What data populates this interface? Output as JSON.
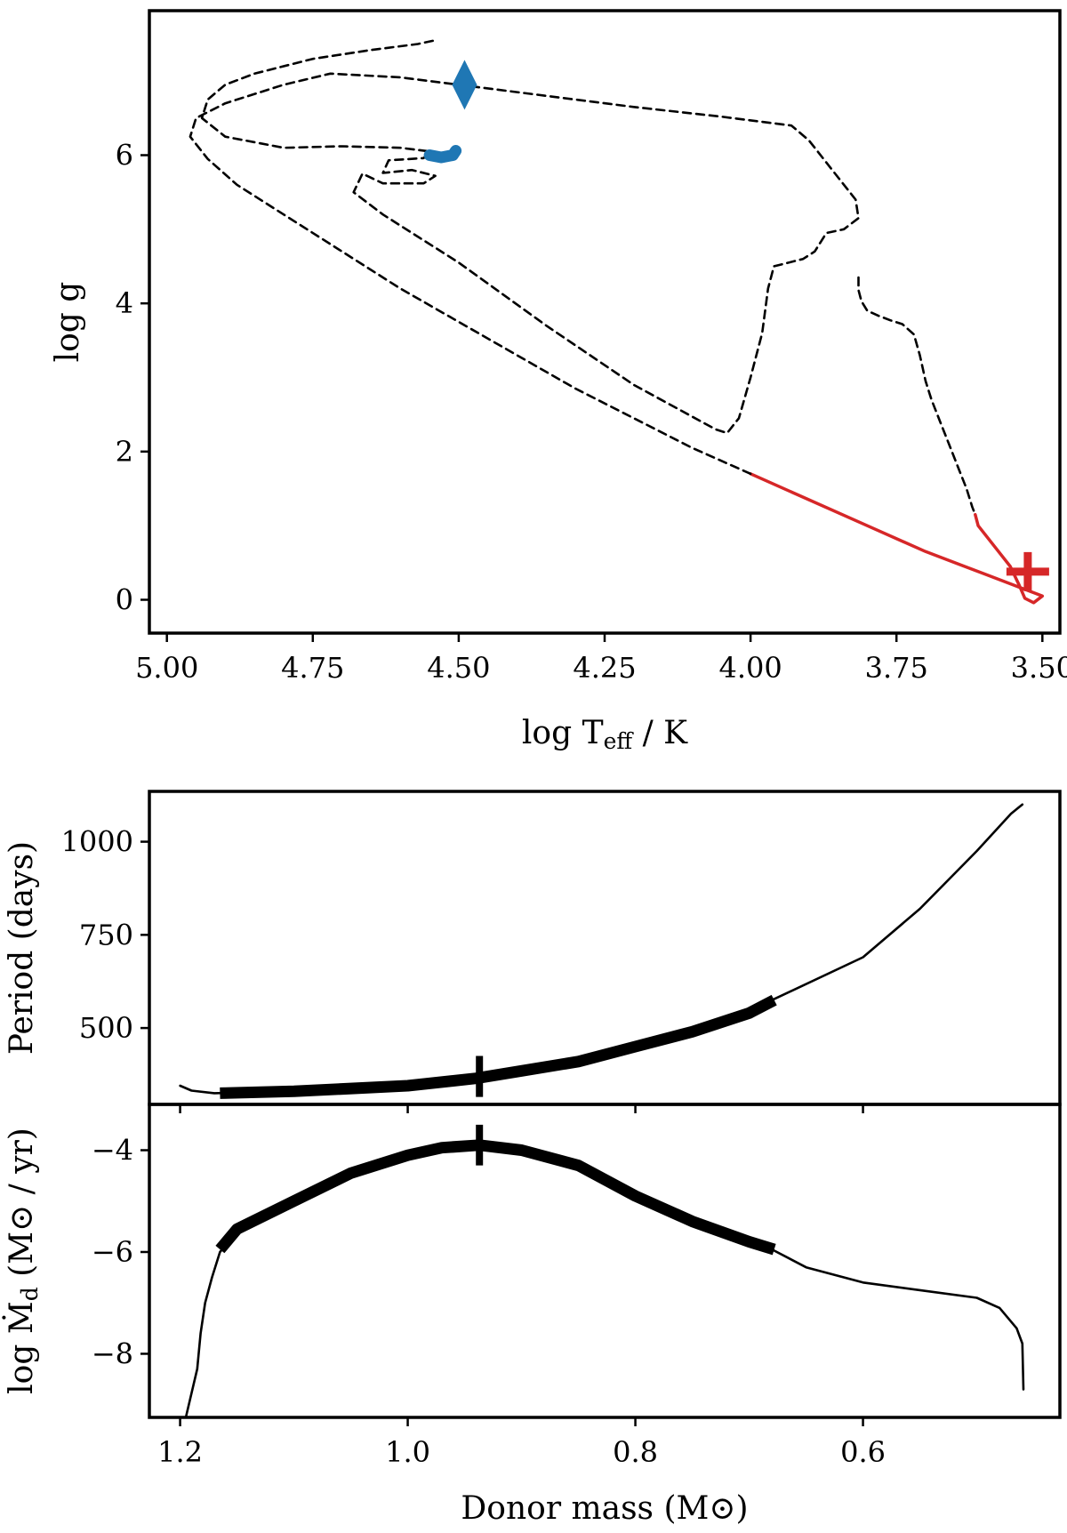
{
  "chart_data": [
    {
      "type": "line",
      "name": "hr-diagram",
      "xlabel": "log T",
      "xlabel_sub": "eff",
      "xlabel_unit": " / K",
      "ylabel": "log g",
      "xlim": [
        5.03,
        3.47
      ],
      "ylim": [
        -0.45,
        7.95
      ],
      "xticks": [
        5.0,
        4.75,
        4.5,
        4.25,
        4.0,
        3.75,
        3.5
      ],
      "xtick_labels": [
        "5.00",
        "4.75",
        "4.50",
        "4.25",
        "4.00",
        "3.75",
        "3.50"
      ],
      "yticks": [
        0,
        2,
        4,
        6
      ],
      "ytick_labels": [
        "0",
        "2",
        "4",
        "6"
      ],
      "colors": {
        "dashed": "#000000",
        "red": "#d62728",
        "blue": "#1f77b4"
      },
      "series": [
        {
          "name": "pre-transfer track",
          "style": "dashed",
          "points": [
            [
              3.815,
              4.35
            ],
            [
              3.815,
              4.18
            ],
            [
              3.81,
              4.03
            ],
            [
              3.8,
              3.9
            ],
            [
              3.78,
              3.83
            ],
            [
              3.76,
              3.77
            ],
            [
              3.74,
              3.72
            ],
            [
              3.72,
              3.58
            ],
            [
              3.71,
              3.3
            ],
            [
              3.7,
              2.95
            ],
            [
              3.69,
              2.7
            ],
            [
              3.675,
              2.4
            ],
            [
              3.66,
              2.1
            ],
            [
              3.645,
              1.8
            ],
            [
              3.63,
              1.5
            ],
            [
              3.62,
              1.25
            ],
            [
              3.615,
              1.15
            ]
          ]
        },
        {
          "name": "mass transfer phase",
          "style": "red",
          "points": [
            [
              3.615,
              1.15
            ],
            [
              3.61,
              1.0
            ],
            [
              3.58,
              0.7
            ],
            [
              3.555,
              0.45
            ],
            [
              3.54,
              0.2
            ],
            [
              3.53,
              0.02
            ],
            [
              3.515,
              -0.04
            ],
            [
              3.5,
              0.05
            ],
            [
              3.6,
              0.35
            ],
            [
              3.7,
              0.65
            ],
            [
              3.8,
              1.0
            ],
            [
              3.9,
              1.35
            ],
            [
              4.0,
              1.7
            ]
          ]
        },
        {
          "name": "post-transfer track",
          "style": "dashed",
          "points": [
            [
              4.0,
              1.7
            ],
            [
              4.1,
              2.05
            ],
            [
              4.2,
              2.45
            ],
            [
              4.3,
              2.85
            ],
            [
              4.4,
              3.3
            ],
            [
              4.5,
              3.75
            ],
            [
              4.6,
              4.2
            ],
            [
              4.7,
              4.7
            ],
            [
              4.8,
              5.2
            ],
            [
              4.88,
              5.6
            ],
            [
              4.93,
              5.95
            ],
            [
              4.96,
              6.25
            ],
            [
              4.95,
              6.5
            ],
            [
              4.9,
              6.7
            ],
            [
              4.8,
              6.95
            ],
            [
              4.72,
              7.1
            ],
            [
              4.6,
              7.05
            ],
            [
              4.5,
              6.95
            ],
            [
              4.35,
              6.8
            ],
            [
              4.2,
              6.65
            ],
            [
              4.05,
              6.52
            ],
            [
              3.93,
              6.4
            ],
            [
              3.9,
              6.2
            ],
            [
              3.86,
              5.8
            ],
            [
              3.82,
              5.4
            ],
            [
              3.815,
              5.15
            ],
            [
              3.84,
              5.0
            ],
            [
              3.87,
              4.95
            ],
            [
              3.89,
              4.7
            ],
            [
              3.91,
              4.6
            ],
            [
              3.96,
              4.5
            ],
            [
              3.97,
              4.2
            ],
            [
              3.98,
              3.6
            ],
            [
              4.0,
              3.0
            ],
            [
              4.02,
              2.45
            ],
            [
              4.04,
              2.25
            ],
            [
              4.06,
              2.3
            ],
            [
              4.2,
              2.9
            ],
            [
              4.35,
              3.7
            ],
            [
              4.5,
              4.55
            ],
            [
              4.63,
              5.2
            ],
            [
              4.68,
              5.5
            ],
            [
              4.665,
              5.75
            ],
            [
              4.63,
              5.62
            ],
            [
              4.56,
              5.62
            ],
            [
              4.54,
              5.72
            ],
            [
              4.58,
              5.8
            ],
            [
              4.63,
              5.76
            ],
            [
              4.62,
              5.93
            ],
            [
              4.56,
              5.96
            ],
            [
              4.55,
              6.05
            ],
            [
              4.6,
              6.1
            ],
            [
              4.7,
              6.12
            ],
            [
              4.8,
              6.1
            ],
            [
              4.9,
              6.25
            ],
            [
              4.94,
              6.5
            ],
            [
              4.93,
              6.75
            ],
            [
              4.9,
              6.95
            ],
            [
              4.85,
              7.1
            ],
            [
              4.75,
              7.3
            ],
            [
              4.65,
              7.42
            ],
            [
              4.57,
              7.5
            ],
            [
              4.54,
              7.55
            ]
          ]
        },
        {
          "name": "blue endpoint",
          "style": "blue-thick",
          "points": [
            [
              4.55,
              6.0
            ],
            [
              4.53,
              5.97
            ],
            [
              4.51,
              6.0
            ],
            [
              4.505,
              6.06
            ]
          ]
        }
      ],
      "markers": [
        {
          "name": "red-cross",
          "shape": "plus",
          "at": [
            3.525,
            0.38
          ],
          "color": "#d62728"
        },
        {
          "name": "blue-diamond",
          "shape": "diamond",
          "at": [
            4.49,
            6.95
          ],
          "color": "#1f77b4"
        }
      ]
    },
    {
      "type": "line",
      "name": "period-vs-mass",
      "ylabel": "Period (days)",
      "xlim": [
        1.227,
        0.427
      ],
      "ylim": [
        295,
        1135
      ],
      "xticks": [
        1.2,
        1.0,
        0.8,
        0.6
      ],
      "yticks": [
        500,
        750,
        1000
      ],
      "ytick_labels": [
        "500",
        "750",
        "1000"
      ],
      "series": [
        {
          "name": "period thin",
          "style": "thin",
          "points": [
            [
              1.2,
              345
            ],
            [
              1.19,
              332
            ],
            [
              1.17,
              325
            ],
            [
              1.1,
              330
            ],
            [
              1.0,
              345
            ],
            [
              0.94,
              360
            ],
            [
              0.9,
              385
            ],
            [
              0.8,
              450
            ],
            [
              0.7,
              540
            ],
            [
              0.68,
              575
            ],
            [
              0.6,
              690
            ],
            [
              0.55,
              820
            ],
            [
              0.5,
              975
            ],
            [
              0.47,
              1075
            ],
            [
              0.46,
              1100
            ]
          ]
        },
        {
          "name": "period thick",
          "style": "thick",
          "points": [
            [
              1.165,
              325
            ],
            [
              1.1,
              330
            ],
            [
              1.0,
              345
            ],
            [
              0.94,
              365
            ],
            [
              0.9,
              385
            ],
            [
              0.85,
              410
            ],
            [
              0.8,
              450
            ],
            [
              0.75,
              490
            ],
            [
              0.7,
              540
            ],
            [
              0.678,
              575
            ]
          ]
        }
      ],
      "markers": [
        {
          "name": "period-tick-mark",
          "shape": "vbar",
          "at": [
            0.937,
            370
          ],
          "half_height": 55
        }
      ]
    },
    {
      "type": "line",
      "name": "mdot-vs-mass",
      "ylabel": "log Ṁ",
      "ylabel_sub": "d",
      "ylabel_unit": " (M⊙ / yr)",
      "xlabel": "Donor mass (M⊙)",
      "xlim": [
        1.227,
        0.427
      ],
      "ylim": [
        -9.25,
        -3.1
      ],
      "xticks": [
        1.2,
        1.0,
        0.8,
        0.6
      ],
      "xtick_labels": [
        "1.2",
        "1.0",
        "0.8",
        "0.6"
      ],
      "yticks": [
        -4,
        -6,
        -8
      ],
      "ytick_labels": [
        "−4",
        "−6",
        "−8"
      ],
      "series": [
        {
          "name": "mdot thin",
          "style": "thin",
          "points": [
            [
              1.195,
              -9.25
            ],
            [
              1.185,
              -8.3
            ],
            [
              1.182,
              -7.6
            ],
            [
              1.178,
              -7.0
            ],
            [
              1.172,
              -6.5
            ],
            [
              1.165,
              -6.0
            ],
            [
              1.15,
              -5.6
            ],
            [
              1.1,
              -5.0
            ],
            [
              1.05,
              -4.4
            ],
            [
              1.0,
              -4.1
            ],
            [
              0.97,
              -3.95
            ],
            [
              0.937,
              -3.9
            ],
            [
              0.9,
              -4.0
            ],
            [
              0.85,
              -4.3
            ],
            [
              0.8,
              -4.9
            ],
            [
              0.75,
              -5.4
            ],
            [
              0.7,
              -5.8
            ],
            [
              0.68,
              -5.95
            ],
            [
              0.65,
              -6.3
            ],
            [
              0.6,
              -6.6
            ],
            [
              0.55,
              -6.75
            ],
            [
              0.5,
              -6.9
            ],
            [
              0.48,
              -7.1
            ],
            [
              0.465,
              -7.5
            ],
            [
              0.46,
              -7.8
            ],
            [
              0.459,
              -8.7
            ]
          ]
        },
        {
          "name": "mdot thick",
          "style": "thick",
          "points": [
            [
              1.165,
              -5.95
            ],
            [
              1.15,
              -5.55
            ],
            [
              1.1,
              -5.0
            ],
            [
              1.05,
              -4.45
            ],
            [
              1.0,
              -4.1
            ],
            [
              0.97,
              -3.95
            ],
            [
              0.937,
              -3.9
            ],
            [
              0.9,
              -4.0
            ],
            [
              0.85,
              -4.3
            ],
            [
              0.8,
              -4.9
            ],
            [
              0.75,
              -5.4
            ],
            [
              0.7,
              -5.8
            ],
            [
              0.678,
              -5.95
            ]
          ]
        }
      ],
      "markers": [
        {
          "name": "mdot-tick-mark",
          "shape": "vbar",
          "at": [
            0.937,
            -3.9
          ],
          "half_height": 0.4
        }
      ]
    }
  ]
}
